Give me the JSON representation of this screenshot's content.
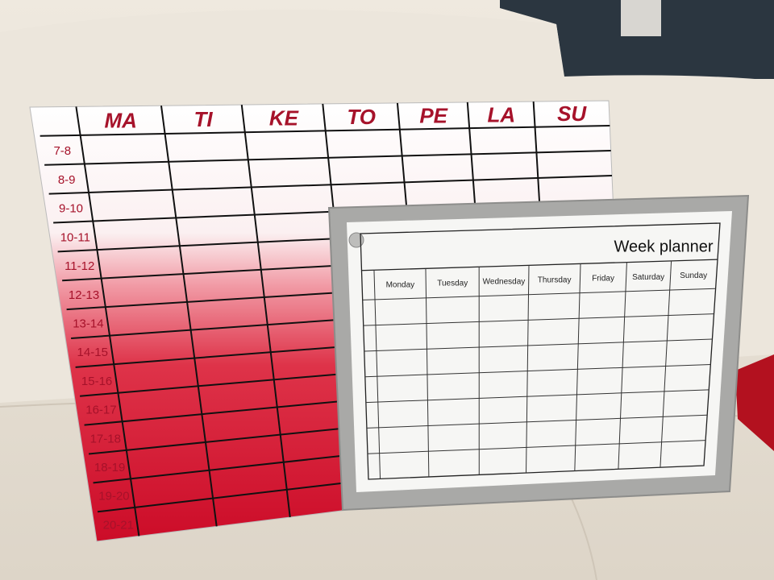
{
  "colors": {
    "couch": "#ebe5da",
    "wall": "#2b3640",
    "board_red": "#d3102c",
    "header_text": "#a6122a",
    "frame": "#a9a9a7"
  },
  "red_board": {
    "days": [
      "MA",
      "TI",
      "KE",
      "TO",
      "PE",
      "LA",
      "SU"
    ],
    "hours": [
      "7-8",
      "8-9",
      "9-10",
      "10-11",
      "11-12",
      "12-13",
      "13-14",
      "14-15",
      "15-16",
      "16-17",
      "17-18",
      "18-19",
      "19-20",
      "20-21"
    ]
  },
  "week_planner": {
    "title": "Week planner",
    "days": [
      "Monday",
      "Tuesday",
      "Wednesday",
      "Thursday",
      "Friday",
      "Saturday",
      "Sunday"
    ]
  }
}
